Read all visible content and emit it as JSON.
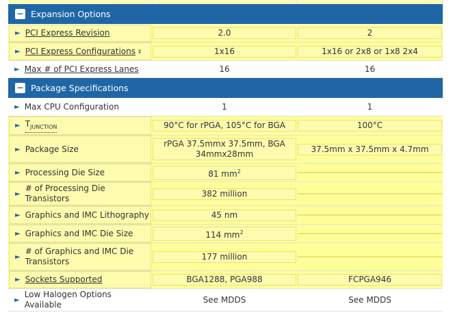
{
  "sections": [
    {
      "title": "Expansion Options",
      "toggle": "−",
      "rows": [
        {
          "label": "PCI Express Revision",
          "style": "underline",
          "v1": "2.0",
          "v2": "2",
          "hl": true
        },
        {
          "label": "PCI Express Configurations",
          "sup": "‡",
          "style": "underline",
          "v1": "1x16",
          "v2": "1x16 or 2x8 or 1x8 2x4",
          "hl": true
        },
        {
          "label": "Max # of PCI Express Lanes",
          "style": "underline",
          "v1": "16",
          "v2": "16",
          "hl": false
        }
      ]
    },
    {
      "title": "Package Specifications",
      "toggle": "−",
      "rows": [
        {
          "label": "Max CPU Configuration",
          "v1": "1",
          "v2": "1",
          "hl": false
        },
        {
          "label": "T",
          "sub": "JUNCTION",
          "style": "dotted",
          "v1": "90°C for rPGA, 105°C for BGA",
          "v2": "100°C",
          "hl": true
        },
        {
          "label": "Package Size",
          "v1": "rPGA 37.5mmx 37.5mm, BGA 34mmx28mm",
          "v2": "37.5mm x 37.5mm x 4.7mm",
          "hl": true
        },
        {
          "label": "Processing Die Size",
          "v1": "81 mm",
          "v1sup": "2",
          "v2": "",
          "hl": true
        },
        {
          "label": "# of Processing Die Transistors",
          "v1": "382 million",
          "v2": "",
          "hl": true
        },
        {
          "label": "Graphics and IMC Lithography",
          "v1": "45 nm",
          "v2": "",
          "hl": true
        },
        {
          "label": "Graphics and IMC Die Size",
          "v1": "114 mm",
          "v1sup": "2",
          "v2": "",
          "hl": true
        },
        {
          "label": "# of Graphics and IMC Die Transistors",
          "v1": "177 million",
          "v2": "",
          "hl": true
        },
        {
          "label": "Sockets Supported",
          "style": "underline",
          "v1": "BGA1288, PGA988",
          "v2": "FCPGA946",
          "hl": true
        },
        {
          "label": "Low Halogen Options Available",
          "v1": "See MDDS",
          "v2": "See MDDS",
          "hl": false
        }
      ]
    }
  ],
  "icons": {
    "row_arrow": "triangle-right-icon",
    "section_toggle": "minus-box-icon"
  },
  "colors": {
    "section_bg": "#1f66a6",
    "highlight": "#ffff99",
    "arrow": "#1f66a6"
  }
}
